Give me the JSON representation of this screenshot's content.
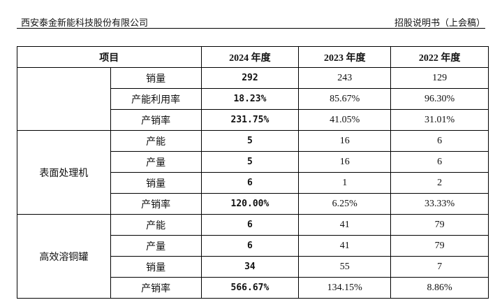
{
  "header": {
    "company": "西安泰金新能科技股份有限公司",
    "doc": "招股说明书（上会稿）"
  },
  "table": {
    "columns": [
      "项目",
      "2024 年度",
      "2023 年度",
      "2022 年度"
    ],
    "groups": [
      {
        "rows": [
          [
            "销量",
            "292",
            "243",
            "129"
          ],
          [
            "产能利用率",
            "18.23%",
            "85.67%",
            "96.30%"
          ],
          [
            "产销率",
            "231.75%",
            "41.05%",
            "31.01%"
          ]
        ]
      },
      {
        "label": "表面处理机",
        "rows": [
          [
            "产能",
            "5",
            "16",
            "6"
          ],
          [
            "产量",
            "5",
            "16",
            "6"
          ],
          [
            "销量",
            "6",
            "1",
            "2"
          ],
          [
            "产销率",
            "120.00%",
            "6.25%",
            "33.33%"
          ]
        ]
      },
      {
        "label": "高效溶铜罐",
        "rows": [
          [
            "产能",
            "6",
            "41",
            "79"
          ],
          [
            "产量",
            "6",
            "41",
            "79"
          ],
          [
            "销量",
            "34",
            "55",
            "7"
          ],
          [
            "产销率",
            "566.67%",
            "134.15%",
            "8.86%"
          ]
        ]
      }
    ]
  }
}
